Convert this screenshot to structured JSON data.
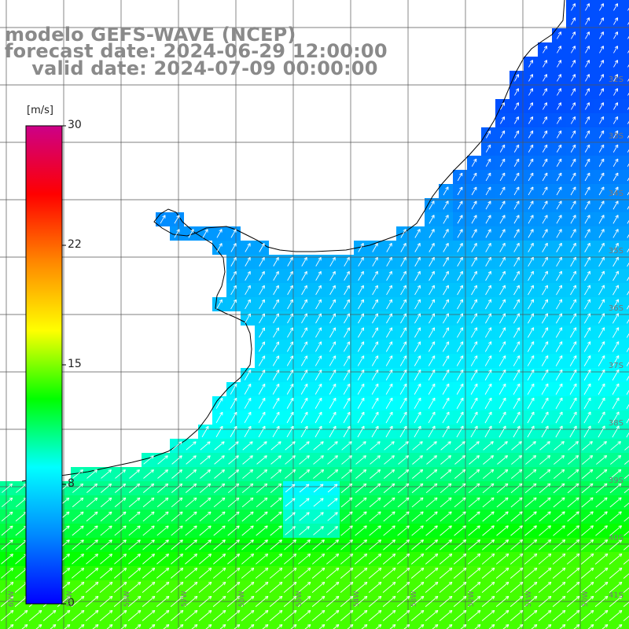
{
  "title": {
    "line1": "modelo GEFS-WAVE (NCEP)",
    "line2": "forecast date: 2024-06-29 12:00:00",
    "line3": "    valid date: 2024-07-09 00:00:00"
  },
  "colorbar": {
    "unit": "[m/s]",
    "min": 0,
    "max": 30,
    "ticks": [
      "30",
      "22",
      "15",
      "8",
      "0"
    ],
    "colors": [
      "#0000ff",
      "#0088ff",
      "#00ffff",
      "#00ff00",
      "#ffff00",
      "#ff8800",
      "#ff0000",
      "#cc0088"
    ]
  },
  "lat_labels": [
    "32S",
    "33S",
    "34S",
    "35S",
    "36S",
    "37S",
    "38S",
    "39S",
    "40S",
    "41S"
  ],
  "lon_labels": [
    "60W",
    "59W",
    "58W",
    "57W",
    "56W",
    "55W",
    "54W",
    "53W",
    "52W",
    "51W",
    "50W"
  ],
  "colors": {
    "land": "#ffffff",
    "coast": "#000000",
    "grid": "#555555",
    "arrows": "#ffffff",
    "title": "#8a8a8a"
  }
}
